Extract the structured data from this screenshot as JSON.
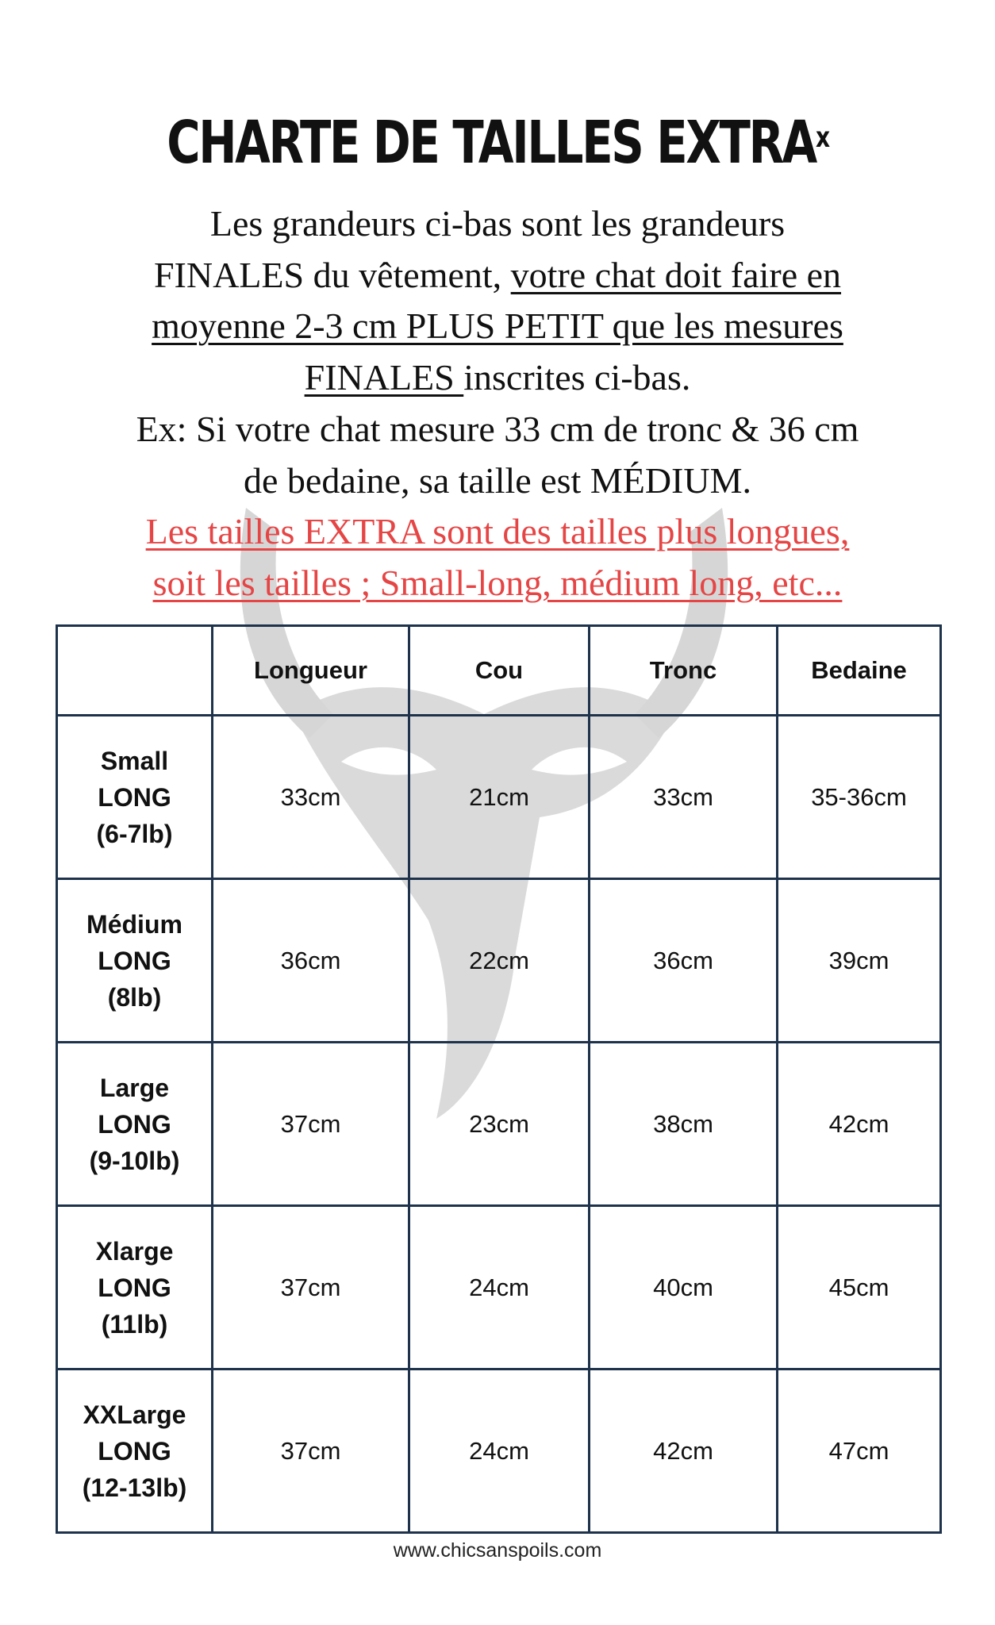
{
  "title": "CHARTE DE TAILLES EXTRA",
  "title_mark": "x",
  "intro": {
    "l1": "Les grandeurs ci-bas sont les grandeurs",
    "l2a": "FINALES du vêtement, ",
    "l2b": "votre chat doit faire en",
    "l3": "moyenne 2-3 cm PLUS PETIT que les mesures",
    "l4a": "FINALES ",
    "l4b": "inscrites ci-bas.",
    "l5": "Ex: Si votre chat mesure 33 cm de tronc & 36 cm",
    "l6": "de bedaine, sa taille est MÉDIUM.",
    "l7": "Les tailles EXTRA sont des tailles plus longues,",
    "l8": "soit les tailles ; Small-long, médium long, etc... "
  },
  "accent_color": "#e64545",
  "table": {
    "headers": [
      "",
      "Longueur",
      "Cou",
      "Tronc",
      "Bedaine"
    ],
    "rows": [
      {
        "size": [
          "Small",
          "LONG",
          "(6-7lb)"
        ],
        "values": [
          "33cm",
          "21cm",
          "33cm",
          "35-36cm"
        ]
      },
      {
        "size": [
          "Médium",
          "LONG",
          "(8lb)"
        ],
        "values": [
          "36cm",
          "22cm",
          "36cm",
          "39cm"
        ]
      },
      {
        "size": [
          "Large",
          "LONG",
          "(9-10lb)"
        ],
        "values": [
          "37cm",
          "23cm",
          "38cm",
          "42cm"
        ]
      },
      {
        "size": [
          "Xlarge",
          "LONG",
          "(11lb)"
        ],
        "values": [
          "37cm",
          "24cm",
          "40cm",
          "45cm"
        ]
      },
      {
        "size": [
          "XXLarge",
          "LONG",
          "(12-13lb)"
        ],
        "values": [
          "37cm",
          "24cm",
          "42cm",
          "47cm"
        ]
      }
    ]
  },
  "footer": "www.chicsanspoils.com",
  "watermark_icon": "cat-head-icon"
}
